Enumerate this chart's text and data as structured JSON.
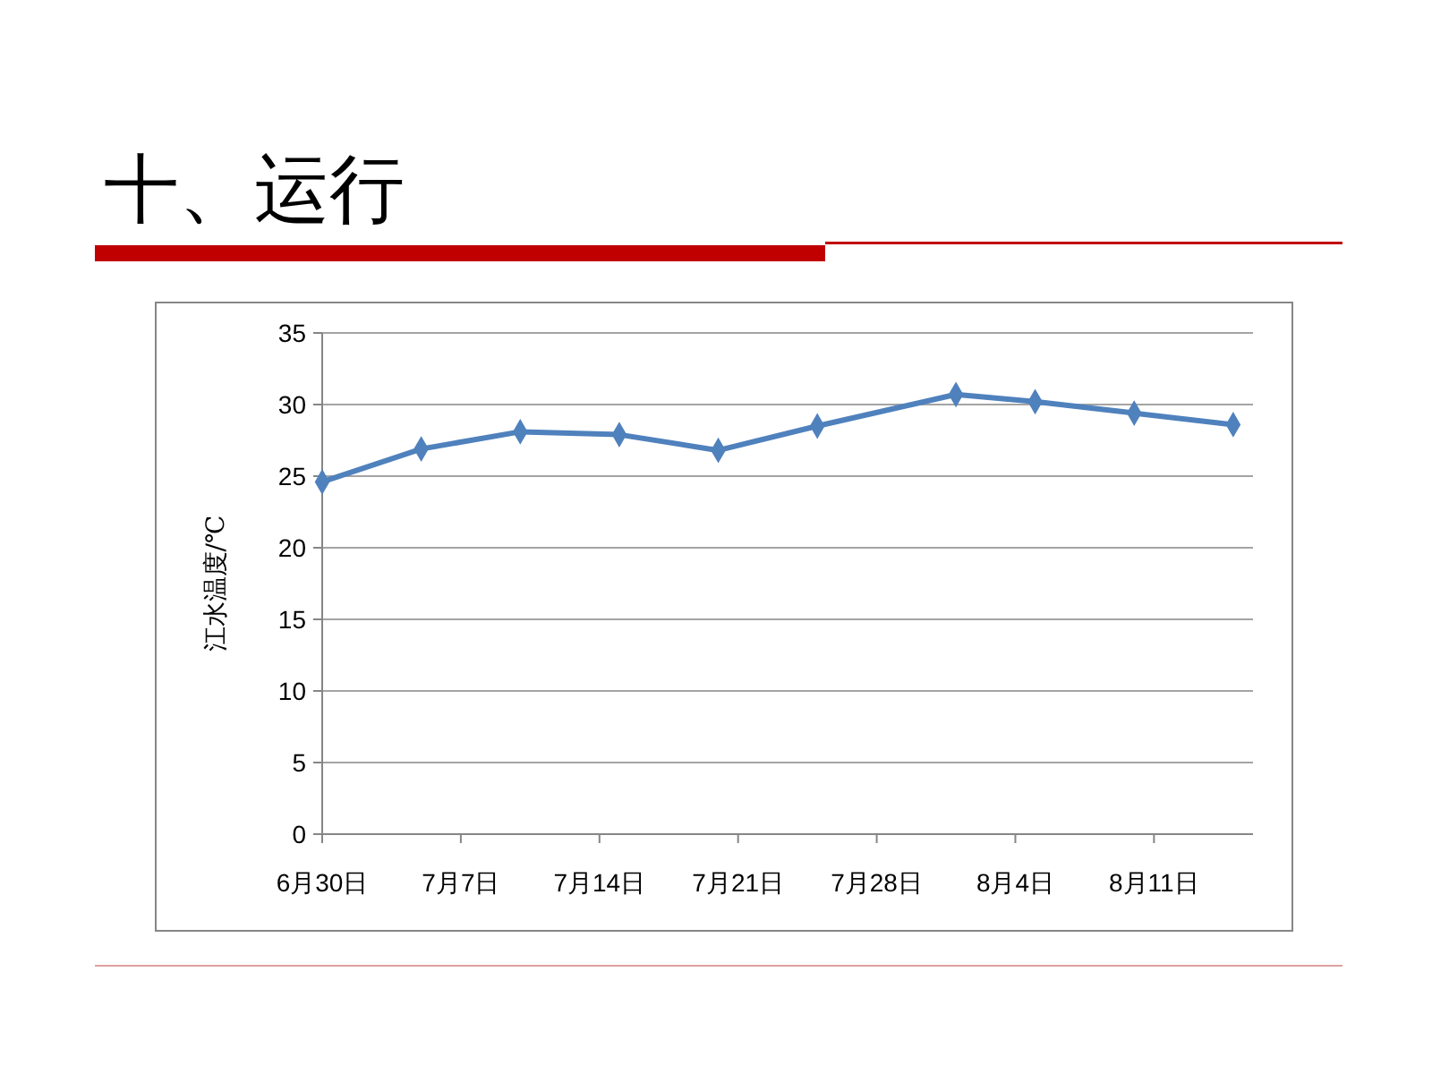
{
  "chart_data": {
    "type": "line",
    "title": "十、运行",
    "ylabel": "江水温度/℃",
    "x": [
      "--06-30",
      "--07-05",
      "--07-10",
      "--07-15",
      "--07-20",
      "--07-25",
      "--08-01",
      "--08-05",
      "--08-10",
      "--08-15"
    ],
    "series": [
      {
        "color": "#4f81bd",
        "values": [
          24.6,
          26.9,
          28.1,
          27.9,
          26.8,
          28.5,
          30.7,
          30.2,
          29.4,
          28.6
        ]
      }
    ],
    "xlim": [
      "--06-30",
      "--08-16"
    ],
    "xticks": [
      {
        "value": "--06-30",
        "label": "6月30日"
      },
      {
        "value": "--07-07",
        "label": "7月7日"
      },
      {
        "value": "--07-14",
        "label": "7月14日"
      },
      {
        "value": "--07-21",
        "label": "7月21日"
      },
      {
        "value": "--07-28",
        "label": "7月28日"
      },
      {
        "value": "--08-04",
        "label": "8月4日"
      },
      {
        "value": "--08-11",
        "label": "8月11日"
      }
    ],
    "ylim": [
      0,
      35
    ],
    "yticks": [
      0,
      5,
      10,
      15,
      20,
      25,
      30,
      35
    ],
    "grid": "y",
    "marker": "diamond",
    "line_style": "solid"
  }
}
